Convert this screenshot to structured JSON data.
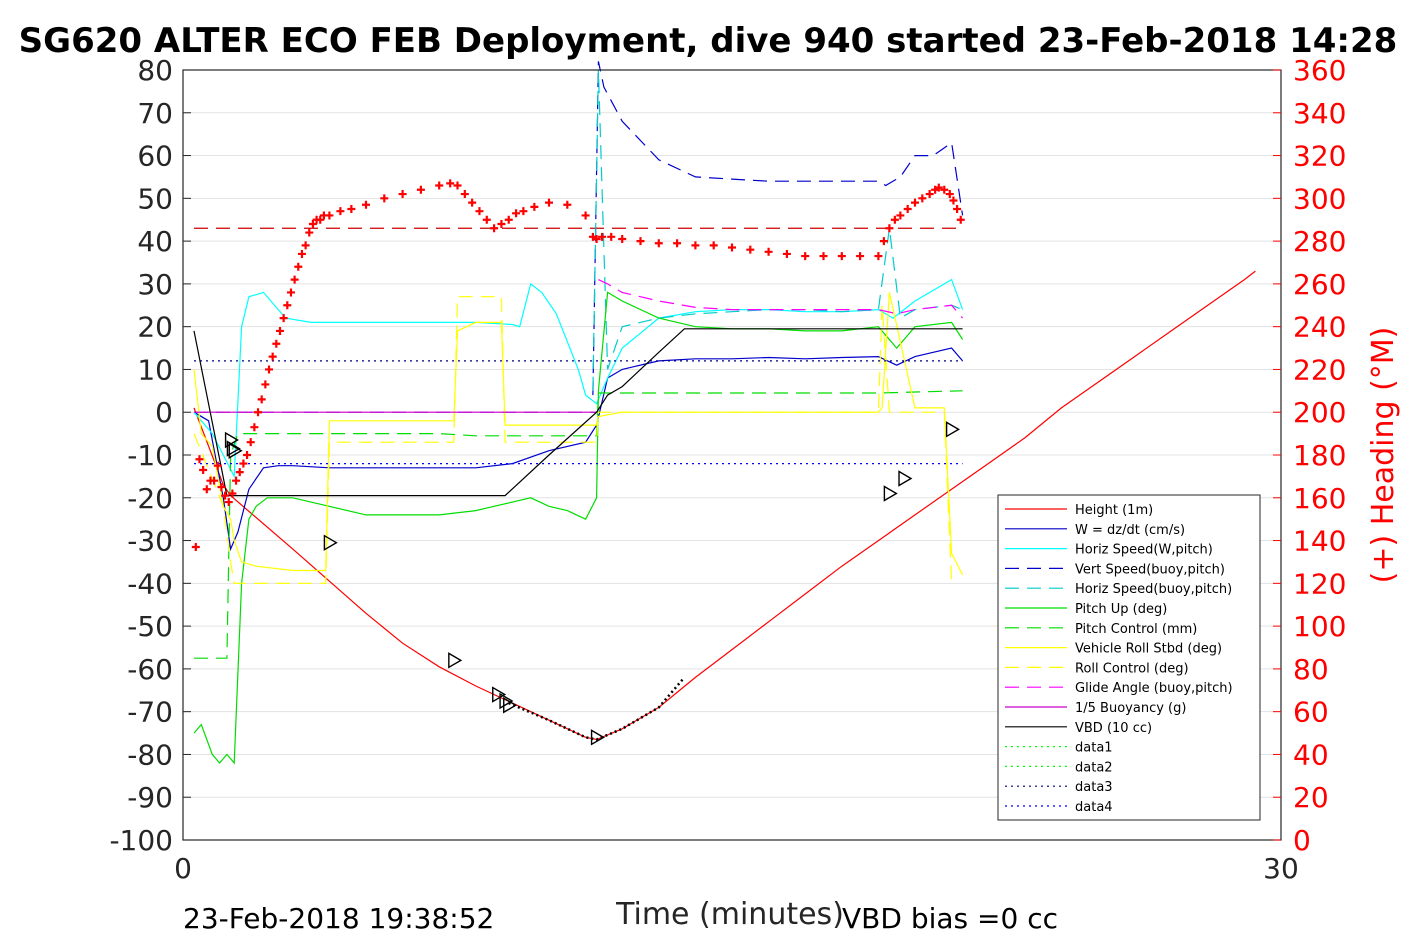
{
  "chart_data": {
    "type": "line",
    "title": "SG620 ALTER ECO FEB Deployment, dive 940 started 23-Feb-2018 14:28",
    "xlabel": "Time (minutes)",
    "ylabel": "",
    "y2label": "(+) Heading (°M)",
    "xlim": [
      0,
      30
    ],
    "ylim": [
      -100,
      80
    ],
    "y2lim": [
      0,
      360
    ],
    "xticks": [
      "0",
      "30"
    ],
    "yticks": [
      "80",
      "70",
      "60",
      "50",
      "40",
      "30",
      "20",
      "10",
      "0",
      "-10",
      "-20",
      "-30",
      "-40",
      "-50",
      "-60",
      "-70",
      "-80",
      "-90",
      "-100"
    ],
    "y2ticks": [
      "360",
      "340",
      "320",
      "300",
      "280",
      "260",
      "240",
      "220",
      "200",
      "180",
      "160",
      "140",
      "120",
      "100",
      "80",
      "60",
      "40",
      "20",
      "0"
    ],
    "grid": "horizontal",
    "legend_position": "lower-right",
    "footer_left": "23-Feb-2018 19:38:52",
    "footer_right": "VBD bias =0 cc",
    "colors": {
      "axis_right": "#ff0000",
      "heading": "#ff0000"
    },
    "series": [
      {
        "name": "Height (1m)",
        "color": "#ff0000",
        "style": "solid",
        "x": [
          0.3,
          1.1,
          1.3,
          3,
          4,
          5,
          6,
          7,
          8,
          9,
          10,
          11,
          11.3,
          12,
          13,
          14,
          15,
          16,
          17,
          18,
          19,
          20,
          21,
          22,
          23,
          24,
          25,
          26,
          27,
          28,
          29,
          29.3
        ],
        "y": [
          1,
          -17,
          -19.5,
          -32,
          -39.5,
          -47,
          -54,
          -59.5,
          -64,
          -68,
          -72,
          -76,
          -76.5,
          -74,
          -69,
          -62,
          -55.5,
          -49,
          -42.5,
          -36,
          -30,
          -24,
          -18,
          -12,
          -6,
          1,
          7,
          13,
          19,
          25,
          31,
          33
        ]
      },
      {
        "name": "W = dz/dt (cm/s)",
        "color": "#0000cc",
        "style": "solid",
        "x": [
          0.3,
          0.7,
          1.1,
          1.3,
          1.5,
          1.8,
          2.2,
          2.6,
          3,
          4,
          5,
          6,
          7,
          8,
          9,
          10,
          11,
          11.3,
          11.6,
          12,
          13,
          14,
          15,
          16,
          17,
          18,
          19,
          19.5,
          20,
          21,
          21.3
        ],
        "y": [
          0,
          -2,
          -20,
          -32,
          -28,
          -18,
          -13,
          -12.5,
          -12.5,
          -13,
          -13,
          -13,
          -13,
          -13,
          -12,
          -9,
          -7,
          -3,
          8,
          10,
          12,
          12.5,
          12.5,
          12.8,
          12.5,
          12.8,
          13,
          11,
          13,
          15,
          12
        ]
      },
      {
        "name": "Horiz Speed(W,pitch)",
        "color": "#00ffff",
        "style": "solid",
        "x": [
          0.3,
          0.8,
          1.1,
          1.4,
          1.6,
          1.8,
          2.2,
          2.8,
          3.5,
          5,
          7,
          8,
          9,
          9.2,
          9.5,
          9.8,
          10.2,
          10.8,
          11,
          11.3,
          11.6,
          12,
          13,
          14,
          15,
          16,
          17,
          18,
          19,
          19.4,
          20,
          21,
          21.3
        ],
        "y": [
          0,
          -5,
          -10,
          -15,
          20,
          27,
          28,
          22,
          21,
          21,
          21,
          21,
          20.5,
          20,
          30,
          28,
          23,
          10,
          4,
          2,
          8,
          15,
          22,
          23.5,
          24,
          24,
          23.5,
          23.5,
          24,
          22,
          26,
          31,
          24
        ]
      },
      {
        "name": "Vert Speed(buoy,pitch)",
        "color": "#0000cc",
        "style": "dashed",
        "x": [
          11.2,
          11.35,
          11.5,
          12,
          13,
          14,
          15,
          16,
          17,
          18,
          19,
          19.2,
          19.6,
          20,
          20.5,
          21,
          21.3
        ],
        "y": [
          4,
          82,
          76,
          68,
          59,
          55,
          54.5,
          54,
          54,
          54,
          54,
          53,
          55,
          60,
          60,
          63,
          46
        ]
      },
      {
        "name": "Horiz Speed(buoy,pitch)",
        "color": "#00cccc",
        "style": "dashed",
        "x": [
          11.2,
          11.35,
          11.6,
          12,
          13,
          14,
          15,
          16,
          17,
          18,
          19,
          19.3,
          19.6,
          20,
          21,
          21.3
        ],
        "y": [
          5,
          80,
          10,
          20,
          22,
          23,
          23.5,
          24,
          24,
          23.5,
          24,
          43,
          22,
          24,
          25,
          24
        ]
      },
      {
        "name": "Pitch Up (deg)",
        "color": "#00dd00",
        "style": "solid",
        "x": [
          0.3,
          0.5,
          0.8,
          1,
          1.2,
          1.4,
          1.6,
          1.8,
          2,
          2.3,
          3,
          5,
          7,
          8,
          8.5,
          9,
          9.5,
          10,
          10.5,
          11,
          11.3,
          11.35,
          11.6,
          12,
          13,
          14,
          15,
          16,
          17,
          18,
          19,
          19.5,
          20,
          21,
          21.3
        ],
        "y": [
          -75,
          -73,
          -80,
          -82,
          -80,
          -82,
          -40,
          -25,
          -22,
          -20,
          -20,
          -24,
          -24,
          -23,
          -22,
          -21,
          -20,
          -22,
          -23,
          -25,
          -20,
          5,
          28,
          26,
          22,
          20,
          19.5,
          19.5,
          19,
          19,
          20,
          15,
          20,
          21,
          17
        ]
      },
      {
        "name": "Pitch Control (mm)",
        "color": "#00dd00",
        "style": "dashed",
        "x": [
          0.3,
          1.2,
          1.3,
          1.5,
          5,
          7,
          8,
          9,
          10,
          11,
          11.3,
          11.35,
          15,
          19,
          21.3
        ],
        "y": [
          -57.5,
          -57.5,
          -10,
          -5,
          -5,
          -5,
          -5.5,
          -5.5,
          -5.5,
          -5.5,
          -5.5,
          4.5,
          4.5,
          4.5,
          5
        ]
      },
      {
        "name": "Vehicle Roll Stbd (deg)",
        "color": "#ffff00",
        "style": "solid",
        "x": [
          0.3,
          0.5,
          0.8,
          1.1,
          1.3,
          1.4,
          1.6,
          2,
          3,
          3.9,
          4,
          5,
          7,
          7.4,
          7.5,
          8,
          8.5,
          8.7,
          8.8,
          10,
          11,
          11.3,
          11.35,
          12,
          14,
          16,
          18,
          19,
          19.1,
          19.3,
          20,
          20.8,
          21,
          21.3
        ],
        "y": [
          10,
          -5,
          -8,
          -22,
          -25,
          -30,
          -35,
          -36,
          -37,
          -37,
          -2,
          -2,
          -2,
          -2,
          19,
          21,
          21,
          21,
          -3,
          -3,
          -3,
          -3,
          -1,
          0,
          0,
          0,
          0,
          0,
          1,
          28,
          1,
          1,
          -33,
          -38
        ]
      },
      {
        "name": "Roll Control (deg)",
        "color": "#ffff00",
        "style": "dashed",
        "x": [
          0.3,
          1.1,
          1.3,
          1.4,
          2,
          3.9,
          4,
          7.4,
          7.5,
          8.7,
          8.8,
          11.3,
          11.35,
          19,
          19.1,
          19.3,
          20.8,
          21
        ],
        "y": [
          -5,
          -22,
          -35,
          -40,
          -40,
          -40,
          -7,
          -7,
          27,
          27,
          -7,
          -7,
          0,
          0,
          25,
          0,
          0,
          -40
        ]
      },
      {
        "name": "Glide Angle (buoy,pitch)",
        "color": "#ff00ff",
        "style": "dashed",
        "x": [
          11.35,
          11.6,
          12,
          13,
          14,
          15,
          16,
          17,
          18,
          19,
          19.5,
          20,
          21,
          21.3
        ],
        "y": [
          31,
          30,
          28,
          26,
          24.5,
          24,
          24,
          24,
          24,
          24,
          23,
          24,
          25,
          22
        ]
      },
      {
        "name": "1/5 Buoyancy (g)",
        "color": "#cc00cc",
        "style": "solid",
        "x": [
          0.3,
          11.3
        ],
        "y": [
          0,
          0
        ]
      },
      {
        "name": "VBD (10 cc)",
        "color": "#000000",
        "style": "solid",
        "x": [
          0.3,
          1.2,
          2,
          8,
          8.8,
          10,
          11.3,
          11.6,
          12,
          13,
          13.7,
          15,
          18,
          21.3
        ],
        "y": [
          19,
          -19.5,
          -19.5,
          -19.5,
          -19.5,
          -10,
          0,
          4,
          6,
          14,
          19.5,
          19.5,
          19.5,
          19.5
        ]
      },
      {
        "name": "data1",
        "color": "#00ff00",
        "style": "dotted",
        "x": [],
        "y": []
      },
      {
        "name": "data2",
        "color": "#00ff00",
        "style": "dotted",
        "x": [],
        "y": []
      },
      {
        "name": "data3",
        "color": "#000080",
        "style": "dotted",
        "x": [
          0.3,
          21.3
        ],
        "y": [
          12,
          12
        ]
      },
      {
        "name": "data4",
        "color": "#0000ff",
        "style": "dotted",
        "x": [
          0.3,
          21.3
        ],
        "y": [
          -12,
          -12
        ]
      }
    ],
    "reference_lines": [
      {
        "color": "#cc0000",
        "style": "dashed",
        "axis": "y2",
        "x": [
          0.3,
          21.3
        ],
        "value": 286
      },
      {
        "color": "#9933ff",
        "style": "dashed",
        "axis": "y",
        "x": [
          0.3,
          11.3
        ],
        "value": 0
      }
    ],
    "height_dotted": {
      "color": "#000000",
      "x": [
        8.9,
        10,
        11,
        11.3,
        12,
        13,
        13.7
      ],
      "y": [
        -68,
        -72,
        -76,
        -76.5,
        -74,
        -69,
        -62
      ]
    },
    "heading": {
      "axis": "y2",
      "color": "#ff0000",
      "marker": "+",
      "x": [
        0.35,
        0.45,
        0.55,
        0.65,
        0.75,
        0.85,
        0.95,
        1.05,
        1.15,
        1.25,
        1.35,
        1.45,
        1.55,
        1.65,
        1.75,
        1.85,
        1.95,
        2.05,
        2.15,
        2.25,
        2.35,
        2.45,
        2.55,
        2.65,
        2.75,
        2.85,
        2.95,
        3.05,
        3.15,
        3.25,
        3.35,
        3.45,
        3.55,
        3.65,
        3.75,
        3.85,
        4,
        4.3,
        4.6,
        5,
        5.5,
        6,
        6.5,
        7,
        7.3,
        7.5,
        7.7,
        7.9,
        8.1,
        8.3,
        8.5,
        8.7,
        8.9,
        9.1,
        9.3,
        9.6,
        10,
        10.5,
        11,
        11.2,
        11.3,
        11.45,
        11.7,
        12,
        12.5,
        13,
        13.5,
        14,
        14.5,
        15,
        15.5,
        16,
        16.5,
        17,
        17.5,
        18,
        18.5,
        19,
        19.15,
        19.3,
        19.45,
        19.6,
        19.8,
        20,
        20.2,
        20.4,
        20.55,
        20.65,
        20.8,
        20.95,
        21.05,
        21.15,
        21.25
      ],
      "y": [
        137,
        178,
        173,
        164,
        168,
        168,
        175,
        165,
        161,
        158,
        162,
        168,
        172,
        176,
        180,
        186,
        193,
        200,
        206,
        213,
        220,
        226,
        232,
        238,
        244,
        250,
        256,
        262,
        268,
        274,
        278,
        284,
        288,
        290,
        290,
        292,
        292,
        294,
        295,
        297,
        300,
        302,
        304,
        306,
        307,
        306,
        302,
        298,
        294,
        290,
        286,
        288,
        290,
        293,
        294,
        296,
        298,
        297,
        292,
        282,
        281,
        282,
        282,
        281,
        280,
        279,
        279,
        278,
        278,
        277,
        276,
        275,
        274,
        273,
        273,
        273,
        273,
        273,
        280,
        286,
        290,
        292,
        295,
        298,
        300,
        302,
        304,
        305,
        304,
        302,
        299,
        295,
        290
      ]
    },
    "triangles": {
      "color": "#000000",
      "x": [
        1.3,
        1.35,
        1.4,
        4,
        7.4,
        8.6,
        8.8,
        8.9,
        11.3,
        19.3,
        19.7,
        21
      ],
      "y": [
        -6.5,
        -8.5,
        -9,
        -30.5,
        -58,
        -66,
        -67.5,
        -68.5,
        -76,
        -19,
        -15.5,
        -4
      ]
    }
  }
}
